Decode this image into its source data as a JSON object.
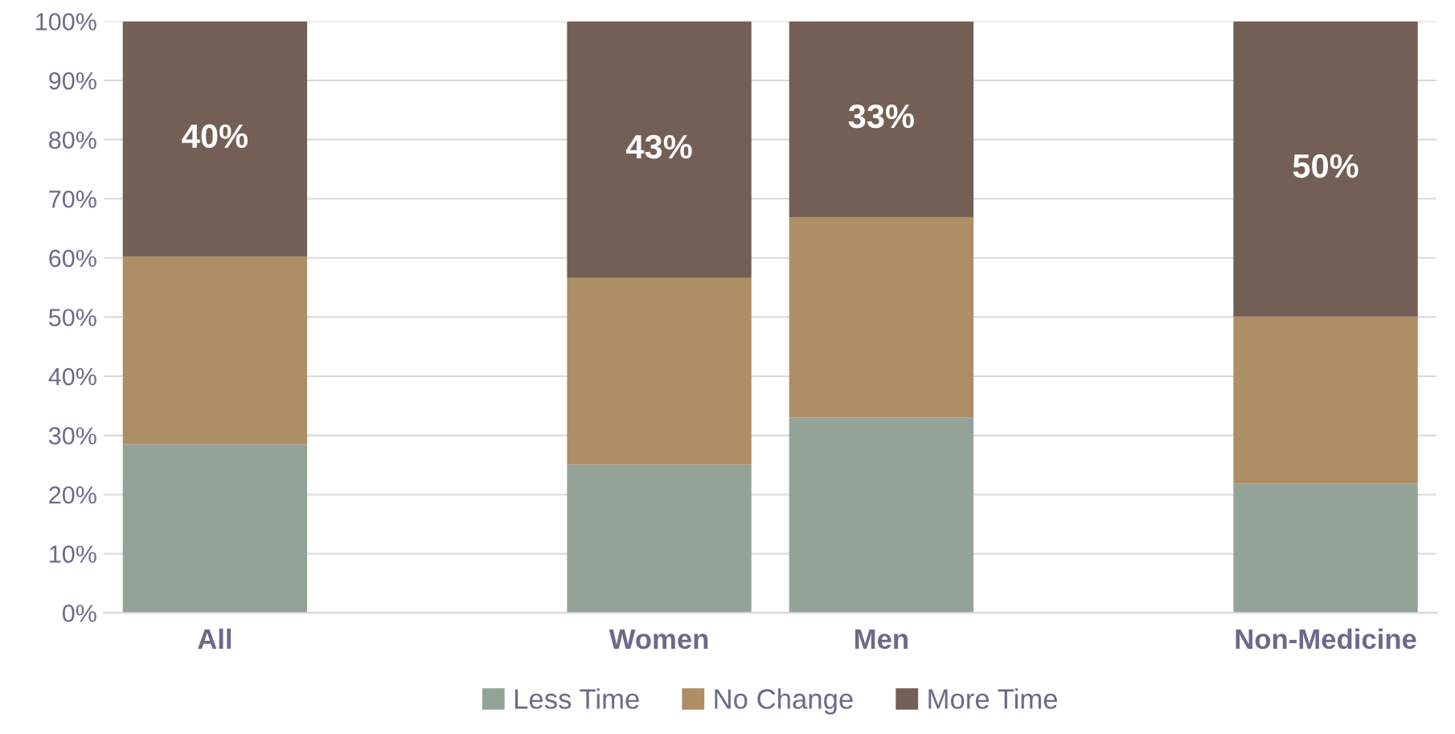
{
  "chart_data": {
    "type": "bar",
    "stacked": true,
    "categories": [
      "All",
      null,
      "Women",
      "Men",
      null,
      "Non-Medicine"
    ],
    "series": [
      {
        "name": "Less Time",
        "color": "#94a398",
        "values": [
          28.5,
          null,
          25.1,
          33.0,
          null,
          21.9
        ]
      },
      {
        "name": "No Change",
        "color": "#ad8e65",
        "values": [
          31.7,
          null,
          31.5,
          33.9,
          null,
          28.2
        ]
      },
      {
        "name": "More Time",
        "color": "#735f55",
        "values": [
          39.8,
          null,
          43.4,
          33.1,
          null,
          49.9
        ],
        "value_labels": [
          "40%",
          null,
          "43%",
          "33%",
          null,
          "50%"
        ]
      }
    ],
    "ylim": [
      0,
      100
    ],
    "yticks": [
      {
        "value": 0,
        "label": "0%"
      },
      {
        "value": 10,
        "label": "10%"
      },
      {
        "value": 20,
        "label": "20%"
      },
      {
        "value": 30,
        "label": "30%"
      },
      {
        "value": 40,
        "label": "40%"
      },
      {
        "value": 50,
        "label": "50%"
      },
      {
        "value": 60,
        "label": "60%"
      },
      {
        "value": 70,
        "label": "70%"
      },
      {
        "value": 80,
        "label": "80%"
      },
      {
        "value": 90,
        "label": "90%"
      },
      {
        "value": 100,
        "label": "100%"
      }
    ],
    "grid": "y",
    "legend": "bottom"
  }
}
